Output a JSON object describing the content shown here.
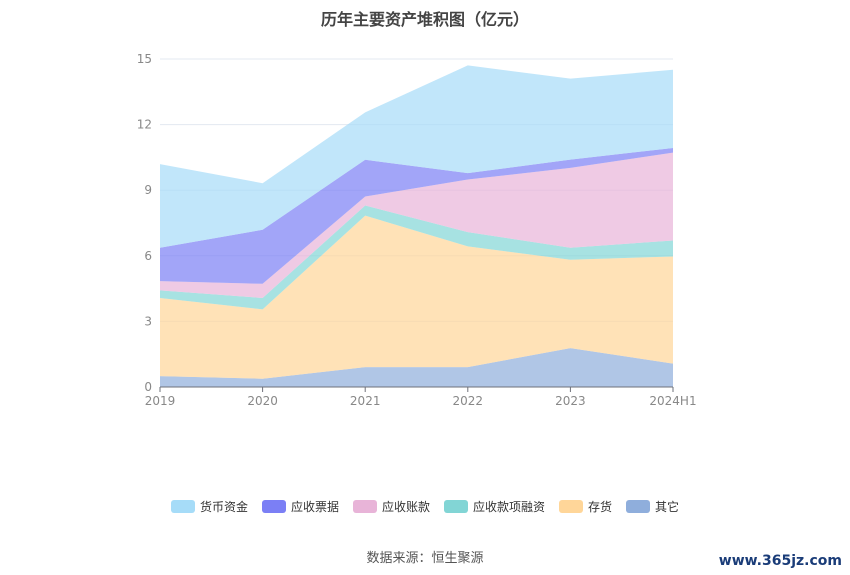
{
  "chart_data": {
    "type": "area",
    "stacked": true,
    "title": "历年主要资产堆积图（亿元）",
    "categories": [
      "2019",
      "2020",
      "2021",
      "2022",
      "2023",
      "2024H1"
    ],
    "ylim": [
      0,
      15
    ],
    "yticks": [
      "0",
      "3",
      "6",
      "9",
      "12",
      "15"
    ],
    "grid": true,
    "legend_position": "bottom",
    "series": [
      {
        "name": "其它",
        "color": "#8faedc",
        "values": [
          0.5,
          0.38,
          0.91,
          0.91,
          1.78,
          1.07
        ]
      },
      {
        "name": "存货",
        "color": "#ffd699",
        "values": [
          3.57,
          3.17,
          6.93,
          5.52,
          4.04,
          4.9
        ]
      },
      {
        "name": "应收款项融资",
        "color": "#82d5d5",
        "values": [
          0.35,
          0.52,
          0.46,
          0.65,
          0.55,
          0.73
        ]
      },
      {
        "name": "应收账款",
        "color": "#e8b4d8",
        "values": [
          0.42,
          0.65,
          0.41,
          2.41,
          3.65,
          4.02
        ]
      },
      {
        "name": "应收票据",
        "color": "#7b7ff5",
        "values": [
          1.53,
          2.47,
          1.68,
          0.29,
          0.38,
          0.21
        ]
      },
      {
        "name": "货币资金",
        "color": "#a6dcf8",
        "values": [
          3.82,
          2.13,
          2.17,
          4.93,
          3.7,
          3.58
        ]
      }
    ]
  },
  "legend_order": [
    5,
    4,
    3,
    2,
    1,
    0
  ],
  "source": "数据来源：恒生聚源",
  "watermark": "www.365jz.com"
}
